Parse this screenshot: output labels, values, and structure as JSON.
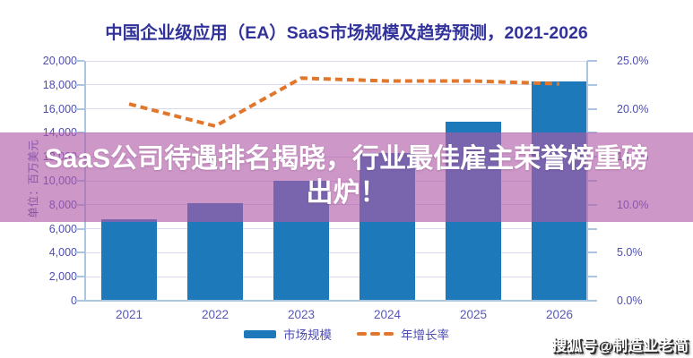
{
  "title": "中国企业级应用（EA）SaaS市场规模及趋势预测，2021-2026",
  "unit_label": "单位：百万美元",
  "overlay": {
    "headline_line1": "SaaS公司待遇排名揭晓，行业最佳雇主荣誉榜重磅",
    "headline_line2": "出炉！"
  },
  "watermark": "搜狐号@制造业老简",
  "legend": {
    "market_size_label": "市场规模",
    "growth_rate_label": "年增长率"
  },
  "chart_data": {
    "type": "bar",
    "title": "中国企业级应用（EA）SaaS市场规模及趋势预测，2021-2026",
    "categories": [
      "2021",
      "2022",
      "2023",
      "2024",
      "2025",
      "2026"
    ],
    "series": [
      {
        "name": "市场规模",
        "type": "bar",
        "axis": "left",
        "values": [
          6800,
          8100,
          10000,
          12300,
          14900,
          18300
        ]
      },
      {
        "name": "年增长率",
        "type": "line",
        "axis": "right",
        "values": [
          20.5,
          18.2,
          23.2,
          22.9,
          22.9,
          22.6
        ]
      }
    ],
    "left_axis": {
      "label": "单位：百万美元",
      "min": 0,
      "max": 20000,
      "tick_values": [
        0,
        2000,
        4000,
        6000,
        8000,
        10000,
        12000,
        14000,
        16000,
        18000,
        20000
      ],
      "tick_labels": [
        "0",
        "2,000",
        "4,000",
        "6,000",
        "8,000",
        "10,000",
        "12,000",
        "14,000",
        "16,000",
        "18,000",
        "20,000"
      ]
    },
    "right_axis": {
      "min": 0,
      "max": 25,
      "major_tick_values": [
        0,
        5,
        10,
        15,
        20,
        25
      ],
      "major_tick_labels": [
        "0.0%",
        "5.0%",
        "10.0%",
        "15.0%",
        "20.0%",
        "25.0%"
      ],
      "minor_tick_step": 2.5
    },
    "grid": true,
    "legend_position": "bottom"
  },
  "colors": {
    "title": "#32329b",
    "axis_text": "#4d4db2",
    "category_text": "#5858b8",
    "bar": "#1d79b9",
    "line": "#e1772d",
    "gridline": "#d9d9ef",
    "axis_line": "#aac6e2",
    "band": "rgba(176,91,168,0.63)",
    "headline_text": "#ffffff"
  }
}
